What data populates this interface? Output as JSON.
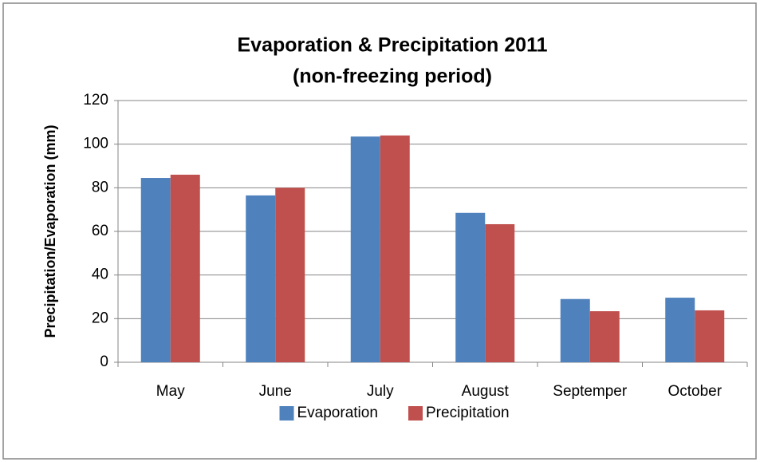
{
  "chart_data": {
    "type": "bar",
    "title": "Evaporation & Precipitation 2011",
    "subtitle": "(non-freezing period)",
    "y_label": "Precipitation/Evaporation (mm)",
    "categories": [
      "May",
      "June",
      "July",
      "August",
      "Septemper",
      "October"
    ],
    "series": [
      {
        "name": "Evaporation",
        "color": "#4f81bd",
        "values": [
          84.5,
          76.5,
          103.5,
          68.5,
          29,
          29.6
        ]
      },
      {
        "name": "Precipitation",
        "color": "#c0504d",
        "values": [
          86,
          80,
          104,
          63.3,
          23.4,
          23.8
        ]
      }
    ],
    "ylim": [
      0,
      120
    ],
    "yticks": [
      0,
      20,
      40,
      60,
      80,
      100,
      120
    ],
    "grid": true,
    "legend": "bottom"
  }
}
